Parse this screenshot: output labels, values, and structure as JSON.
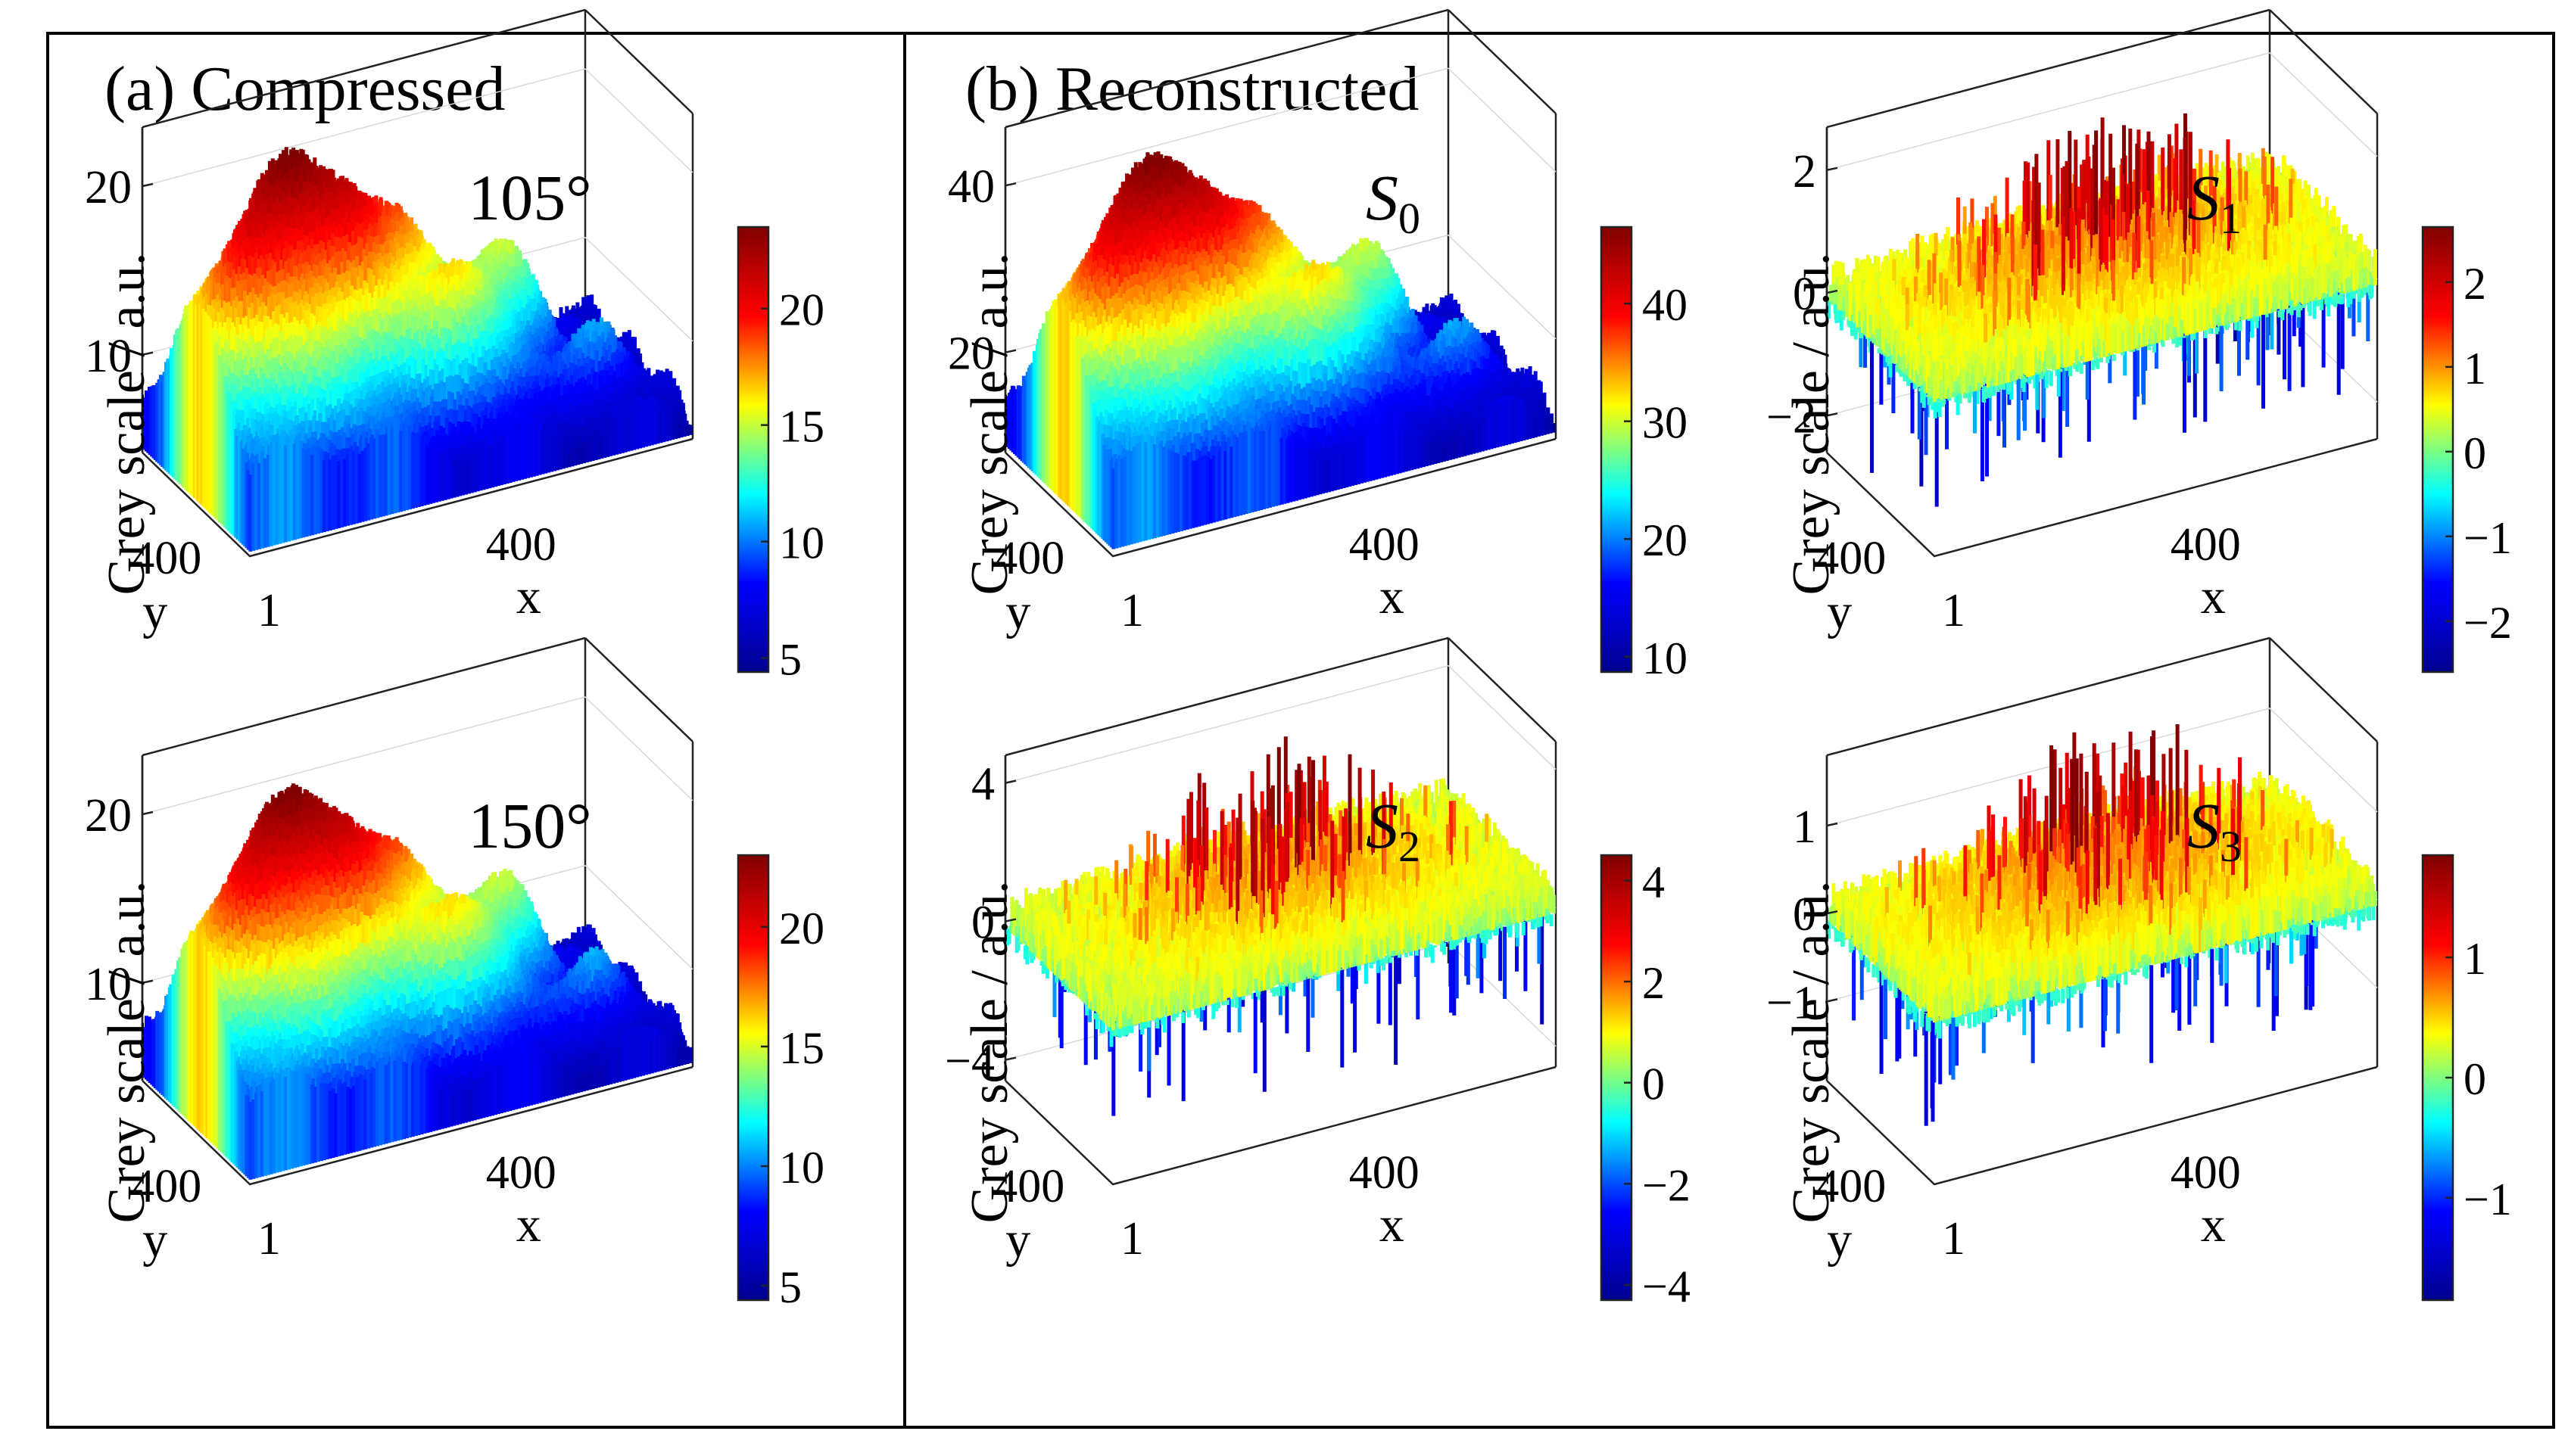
{
  "figure": {
    "panel_a_label": "(a) Compressed",
    "panel_b_label": "(b) Reconstructed",
    "colormap": [
      "#00008f",
      "#0000ff",
      "#00ffff",
      "#ffff00",
      "#ff0000",
      "#800000"
    ]
  },
  "chart_data": [
    {
      "type": "surface3d",
      "title": "105°",
      "ylabel": "Grey scale / a.u.",
      "x_axis_label": "x",
      "y_axis_label": "y",
      "x_ticks": [
        "1",
        "400"
      ],
      "y_ticks": [
        "400"
      ],
      "z_ticks": [
        10,
        20
      ],
      "zlim": [
        4.2,
        23.5
      ],
      "colorbar": {
        "range": [
          4.4,
          23.5
        ],
        "ticks": [
          5,
          10,
          15,
          20
        ]
      },
      "profile": "smooth"
    },
    {
      "type": "surface3d",
      "title": "150°",
      "ylabel": "Grey scale / a.u.",
      "x_axis_label": "x",
      "y_axis_label": "y",
      "x_ticks": [
        "1",
        "400"
      ],
      "y_ticks": [
        "400"
      ],
      "z_ticks": [
        10,
        20
      ],
      "zlim": [
        4.2,
        23.5
      ],
      "colorbar": {
        "range": [
          4.4,
          23
        ],
        "ticks": [
          5,
          10,
          15,
          20
        ]
      },
      "profile": "smooth"
    },
    {
      "type": "surface3d",
      "title": "S",
      "title_sub": "0",
      "ylabel": "Grey scale / a.u.",
      "x_axis_label": "x",
      "y_axis_label": "y",
      "x_ticks": [
        "1",
        "400"
      ],
      "y_ticks": [
        "400"
      ],
      "z_ticks": [
        20,
        40
      ],
      "zlim": [
        8,
        47
      ],
      "colorbar": {
        "range": [
          8.7,
          46.5
        ],
        "ticks": [
          10,
          20,
          30,
          40
        ]
      },
      "profile": "smooth"
    },
    {
      "type": "surface3d",
      "title": "S",
      "title_sub": "1",
      "ylabel": "Grey scale / a.u.",
      "x_axis_label": "x",
      "y_axis_label": "y",
      "x_ticks": [
        "1",
        "400"
      ],
      "y_ticks": [
        "400"
      ],
      "z_ticks": [
        -2,
        0,
        2
      ],
      "z_tick_labels": [
        "−2",
        "0",
        "2"
      ],
      "zlim": [
        -2.6,
        2.7
      ],
      "colorbar": {
        "range": [
          -2.6,
          2.65
        ],
        "ticks": [
          -2,
          -1,
          0,
          1,
          2
        ],
        "tick_labels": [
          "−2",
          "−1",
          "0",
          "1",
          "2"
        ]
      },
      "profile": "spiky"
    },
    {
      "type": "surface3d",
      "title": "S",
      "title_sub": "2",
      "ylabel": "Grey scale / a.u.",
      "x_axis_label": "x",
      "y_axis_label": "y",
      "x_ticks": [
        "1",
        "400"
      ],
      "y_ticks": [
        "400"
      ],
      "z_ticks": [
        -4,
        0,
        4
      ],
      "z_tick_labels": [
        "−4",
        "0",
        "4"
      ],
      "zlim": [
        -4.6,
        4.8
      ],
      "colorbar": {
        "range": [
          -4.3,
          4.5
        ],
        "ticks": [
          -4,
          -2,
          0,
          2,
          4
        ],
        "tick_labels": [
          "−4",
          "−2",
          "0",
          "2",
          "4"
        ]
      },
      "profile": "spiky"
    },
    {
      "type": "surface3d",
      "title": "S",
      "title_sub": "3",
      "ylabel": "Grey scale / a.u.",
      "x_axis_label": "x",
      "y_axis_label": "y",
      "x_ticks": [
        "1",
        "400"
      ],
      "y_ticks": [
        "400"
      ],
      "z_ticks": [
        -1,
        0,
        1
      ],
      "z_tick_labels": [
        "−1",
        "0",
        "1"
      ],
      "zlim": [
        -1.9,
        1.8
      ],
      "colorbar": {
        "range": [
          -1.85,
          1.85
        ],
        "ticks": [
          -1,
          0,
          1
        ],
        "tick_labels": [
          "−1",
          "0",
          "1"
        ]
      },
      "profile": "spiky"
    }
  ]
}
